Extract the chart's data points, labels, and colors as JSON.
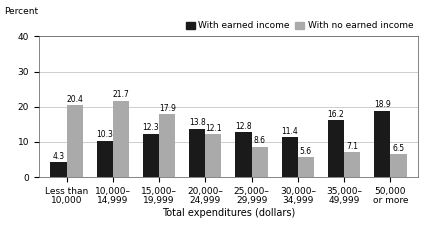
{
  "categories": [
    "Less than\n10,000",
    "10,000–\n14,999",
    "15,000–\n19,999",
    "20,000–\n24,999",
    "25,000–\n29,999",
    "30,000–\n34,999",
    "35,000–\n49,999",
    "50,000\nor more"
  ],
  "earned": [
    4.3,
    10.3,
    12.3,
    13.8,
    12.8,
    11.4,
    16.2,
    18.9
  ],
  "no_earned": [
    20.4,
    21.7,
    17.9,
    12.1,
    8.6,
    5.6,
    7.1,
    6.5
  ],
  "earned_color": "#1a1a1a",
  "no_earned_color": "#aaaaaa",
  "ylabel": "Percent",
  "xlabel": "Total expenditures (dollars)",
  "ylim": [
    0,
    40
  ],
  "yticks": [
    0,
    10,
    20,
    30,
    40
  ],
  "legend_earned": "With earned income",
  "legend_no_earned": "With no earned income",
  "bar_width": 0.35,
  "fontsize_labels": 5.5,
  "fontsize_axis": 6.5,
  "fontsize_legend": 6.5,
  "fontsize_ylabel": 6.5,
  "fontsize_xlabel": 7,
  "background_color": "#ffffff",
  "grid_color": "#bbbbbb"
}
